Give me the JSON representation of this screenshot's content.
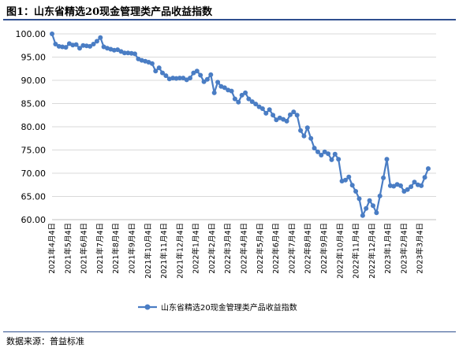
{
  "header": {
    "title": "图1：山东省精选20现金管理类产品收益指数"
  },
  "footer": {
    "source": "数据来源：普益标准"
  },
  "colors": {
    "series": "#4a7dc4",
    "grid": "#d9d9d9",
    "rule": "#2f4f8f"
  },
  "chart_data": {
    "type": "line",
    "title": "",
    "xlabel": "",
    "ylabel": "",
    "ylim": [
      60,
      100
    ],
    "yticks": [
      "100.00",
      "95.00",
      "90.00",
      "85.00",
      "80.00",
      "75.00",
      "70.00",
      "65.00",
      "60.00"
    ],
    "xtick_labels": [
      "2021年4月4日",
      "2021年5月4日",
      "2021年6月4日",
      "2021年7月4日",
      "2021年8月4日",
      "2021年9月4日",
      "2021年10月4日",
      "2021年11月4日",
      "2021年12月4日",
      "2022年1月4日",
      "2022年2月4日",
      "2022年3月4日",
      "2022年4月4日",
      "2022年5月4日",
      "2022年6月4日",
      "2022年7月4日",
      "2022年8月4日",
      "2022年9月4日",
      "2022年10月4日",
      "2022年11月4日",
      "2022年12月4日",
      "2023年1月4日",
      "2023年2月4日",
      "2023年3月4日"
    ],
    "legend": {
      "position": "bottom"
    },
    "series": [
      {
        "name": "山东省精选20现金管理类产品收益指数",
        "values": [
          100.0,
          97.8,
          97.3,
          97.2,
          97.1,
          97.9,
          97.6,
          97.7,
          96.9,
          97.5,
          97.4,
          97.3,
          97.8,
          98.4,
          99.2,
          97.2,
          96.9,
          96.7,
          96.5,
          96.6,
          96.2,
          95.9,
          95.9,
          95.8,
          95.7,
          94.6,
          94.3,
          94.1,
          93.9,
          93.6,
          92.0,
          92.7,
          91.6,
          91.0,
          90.3,
          90.5,
          90.4,
          90.5,
          90.5,
          90.1,
          90.5,
          91.6,
          92.0,
          91.1,
          89.7,
          90.2,
          91.2,
          87.3,
          89.6,
          88.7,
          88.4,
          87.9,
          87.7,
          86.0,
          85.3,
          86.8,
          87.3,
          86.0,
          85.4,
          84.9,
          84.3,
          83.9,
          82.9,
          83.7,
          82.5,
          81.5,
          81.9,
          81.6,
          81.2,
          82.6,
          83.2,
          82.5,
          79.2,
          78.0,
          79.8,
          77.5,
          75.4,
          74.6,
          73.9,
          74.6,
          74.2,
          72.9,
          74.1,
          73.0,
          68.3,
          68.5,
          69.2,
          67.4,
          66.1,
          64.5,
          60.9,
          62.4,
          64.1,
          63.0,
          61.5,
          65.1,
          69.0,
          73.0,
          67.3,
          67.2,
          67.6,
          67.3,
          66.1,
          66.5,
          67.1,
          68.1,
          67.5,
          67.3,
          69.1,
          71.0
        ]
      }
    ]
  }
}
